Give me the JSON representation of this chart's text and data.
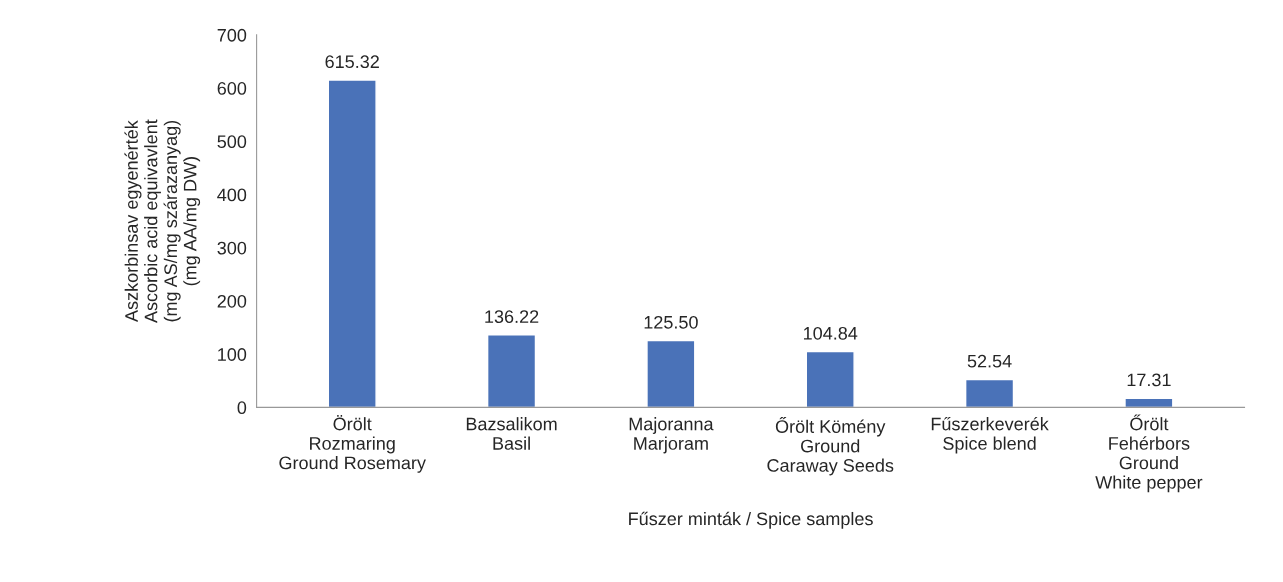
{
  "chart_data": {
    "type": "bar",
    "categories": [
      "Örölt\nRozmaring\nGround Rosemary",
      "Bazsalikom\nBasil",
      "Majoranna\nMarjoram",
      "Őrölt Kömény\nGround\nCaraway Seeds",
      "Fűszerkeverék\nSpice blend",
      "Őrölt\nFehérbors\nGround\nWhite pepper"
    ],
    "values": [
      615.32,
      136.22,
      125.5,
      104.84,
      52.54,
      17.31
    ],
    "value_labels": [
      "615.32",
      "136.22",
      "125.50",
      "104.84",
      "52.54",
      "17.31"
    ],
    "color": "#4a72b8",
    "xlabel": "Fűszer minták / Spice samples",
    "ylabel": "Aszkorbinsav egyenérték\nAscorbic acid equivavlent\n(mg AS/mg szárazanyag)\n(mg AA/mg DW)",
    "ylim": [
      0,
      700
    ],
    "yticks": [
      0,
      100,
      200,
      300,
      400,
      500,
      600,
      700
    ],
    "grid": false,
    "legend": false
  }
}
